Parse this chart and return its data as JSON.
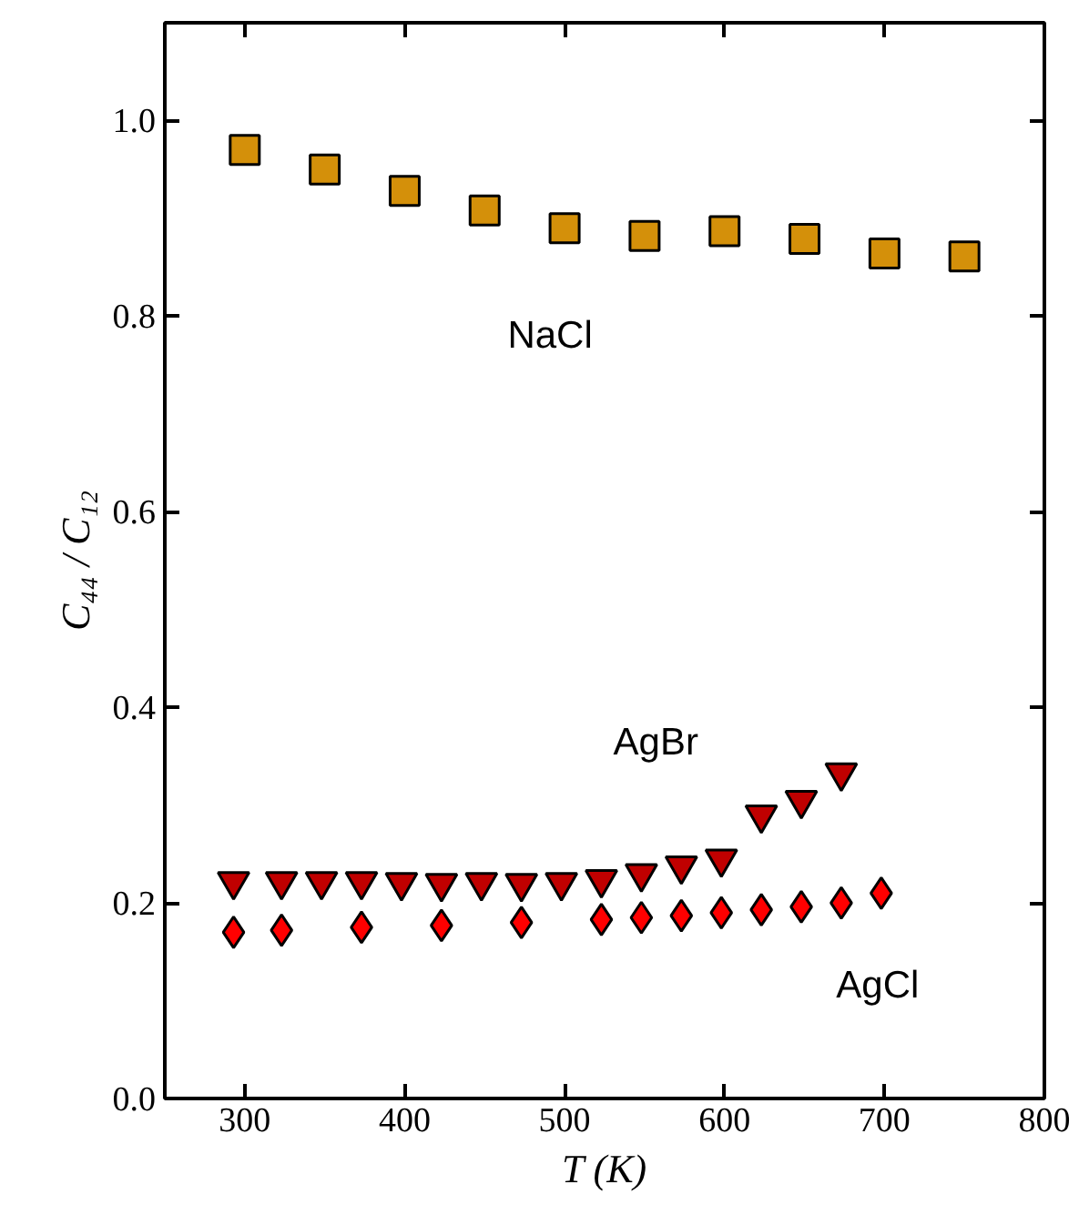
{
  "chart_data": {
    "type": "scatter",
    "xlabel": "T (K)",
    "ylabel": "C₄₄ / C₁₂",
    "xlim": [
      250,
      800
    ],
    "ylim": [
      0,
      1.1
    ],
    "xticks": [
      300,
      400,
      500,
      600,
      700,
      800
    ],
    "yticks": [
      {
        "value": 0,
        "label": "0.0"
      },
      0.2,
      0.4,
      0.6,
      0.8,
      {
        "value": 1,
        "label": "1.0"
      }
    ],
    "grid": false,
    "legend": false,
    "series": [
      {
        "name": "NaCl",
        "color": "#d4900a",
        "marker": "square",
        "x": [
          300,
          350,
          400,
          450,
          500,
          550,
          600,
          650,
          700,
          750
        ],
        "values": [
          0.97,
          0.95,
          0.928,
          0.908,
          0.89,
          0.882,
          0.887,
          0.879,
          0.864,
          0.861
        ]
      },
      {
        "name": "AgBr",
        "color": "#c00000",
        "marker": "triangle_down",
        "x": [
          293,
          323,
          348,
          373,
          398,
          423,
          448,
          473,
          498,
          523,
          548,
          573,
          598,
          623,
          648,
          673
        ],
        "values": [
          0.222,
          0.222,
          0.222,
          0.222,
          0.221,
          0.22,
          0.221,
          0.22,
          0.221,
          0.224,
          0.23,
          0.238,
          0.245,
          0.29,
          0.305,
          0.333
        ]
      },
      {
        "name": "AgCl",
        "color": "#ff0000",
        "marker": "diamond",
        "x": [
          293,
          323,
          373,
          423,
          473,
          523,
          548,
          573,
          598,
          623,
          648,
          673,
          698
        ],
        "values": [
          0.17,
          0.172,
          0.175,
          0.177,
          0.18,
          0.183,
          0.185,
          0.187,
          0.19,
          0.193,
          0.196,
          0.2,
          0.21
        ]
      }
    ]
  }
}
